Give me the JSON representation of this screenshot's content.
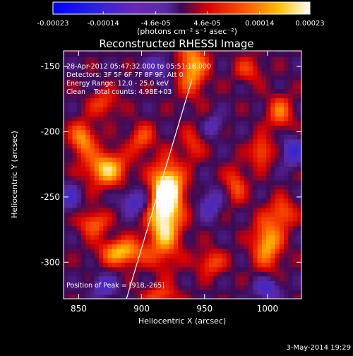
{
  "chart_data": {
    "type": "heatmap",
    "title": "Reconstructed RHESSI Image",
    "xlabel": "Heliocentric X (arcsec)",
    "ylabel": "Heliocentric Y (arcsec)",
    "xlim": [
      838,
      1027
    ],
    "ylim": [
      -328,
      -138
    ],
    "x_ticks": [
      850,
      900,
      950,
      1000
    ],
    "y_ticks": [
      -150,
      -200,
      -250,
      -300
    ],
    "colorbar": {
      "range": [
        -0.00023,
        0.00023
      ],
      "ticks": [
        -0.00023,
        -0.00014,
        -4.6e-05,
        4.6e-05,
        0.00014,
        0.00023
      ],
      "tick_labels": [
        "-0.00023",
        "-0.00014",
        "-4.6e-05",
        "4.6e-05",
        "0.00014",
        "0.00023"
      ],
      "unit_label": "(photons cm⁻² s⁻¹ asec⁻²)"
    },
    "annotations": [
      "28-Apr-2012 05:47:32.000 to 05:51:18.000",
      "Detectors: 3F 5F 6F 7F 8F 9F, Att 0",
      "Energy Range: 12.0 - 25.0 keV",
      "Clean    Total counts: 4.98E+03"
    ],
    "peak_label": "Position of Peak = [918,-265]",
    "peak": [
      918,
      -265
    ],
    "blobs": [
      {
        "x": 918,
        "y": -265,
        "amp": 0.00023,
        "sx": 9,
        "sy": 22
      },
      {
        "x": 922,
        "y": -242,
        "amp": 0.00017,
        "sx": 8,
        "sy": 12
      },
      {
        "x": 872,
        "y": -228,
        "amp": 0.00019,
        "sx": 11,
        "sy": 9
      },
      {
        "x": 853,
        "y": -205,
        "amp": 0.00015,
        "sx": 7,
        "sy": 9
      },
      {
        "x": 885,
        "y": -292,
        "amp": 0.00018,
        "sx": 12,
        "sy": 7
      },
      {
        "x": 862,
        "y": -270,
        "amp": 0.00012,
        "sx": 8,
        "sy": 7
      },
      {
        "x": 940,
        "y": -150,
        "amp": 0.00017,
        "sx": 8,
        "sy": 14
      },
      {
        "x": 1000,
        "y": -285,
        "amp": 0.00017,
        "sx": 8,
        "sy": 13
      },
      {
        "x": 1012,
        "y": -262,
        "amp": 0.00011,
        "sx": 7,
        "sy": 8
      },
      {
        "x": 995,
        "y": -215,
        "amp": 0.00012,
        "sx": 6,
        "sy": 8
      },
      {
        "x": 975,
        "y": -240,
        "amp": 0.0001,
        "sx": 6,
        "sy": 10
      },
      {
        "x": 1010,
        "y": -185,
        "amp": 0.00012,
        "sx": 7,
        "sy": 9
      },
      {
        "x": 870,
        "y": -178,
        "amp": 9e-05,
        "sx": 8,
        "sy": 7
      },
      {
        "x": 900,
        "y": -205,
        "amp": 0.0001,
        "sx": 7,
        "sy": 8
      },
      {
        "x": 955,
        "y": -300,
        "amp": 0.0001,
        "sx": 8,
        "sy": 7
      },
      {
        "x": 915,
        "y": -325,
        "amp": 9e-05,
        "sx": 10,
        "sy": 5
      },
      {
        "x": 985,
        "y": -152,
        "amp": 8e-05,
        "sx": 8,
        "sy": 7
      },
      {
        "x": 940,
        "y": -210,
        "amp": 8e-05,
        "sx": 6,
        "sy": 9
      },
      {
        "x": 895,
        "y": -253,
        "amp": -0.00011,
        "sx": 8,
        "sy": 7
      },
      {
        "x": 1020,
        "y": -215,
        "amp": -0.00012,
        "sx": 6,
        "sy": 8
      },
      {
        "x": 955,
        "y": -255,
        "amp": -0.0001,
        "sx": 6,
        "sy": 8
      },
      {
        "x": 870,
        "y": -318,
        "amp": -0.0001,
        "sx": 7,
        "sy": 6
      },
      {
        "x": 1000,
        "y": -320,
        "amp": -0.00011,
        "sx": 7,
        "sy": 6
      },
      {
        "x": 915,
        "y": -150,
        "amp": -9e-05,
        "sx": 8,
        "sy": 6
      },
      {
        "x": 843,
        "y": -250,
        "amp": -9e-05,
        "sx": 5,
        "sy": 8
      },
      {
        "x": 958,
        "y": -195,
        "amp": -8e-05,
        "sx": 5,
        "sy": 6
      }
    ],
    "limb_line": [
      [
        888,
        -328
      ],
      [
        940,
        -160
      ]
    ],
    "grid": false
  },
  "footer": {
    "date": "3-May-2014 19:29"
  }
}
